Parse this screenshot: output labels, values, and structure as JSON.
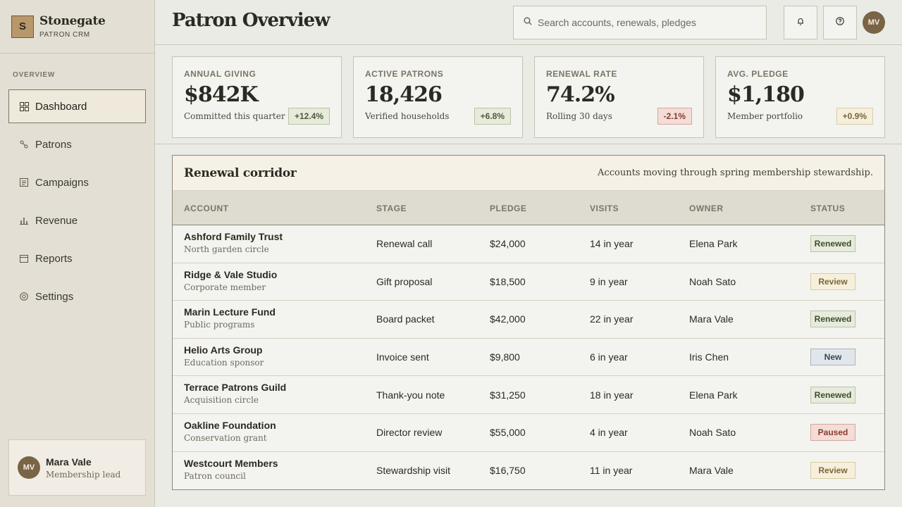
{
  "brand": {
    "initial": "S",
    "name": "Stonegate",
    "subtitle": "PATRON CRM"
  },
  "sidebar": {
    "section_label": "OVERVIEW",
    "items": [
      {
        "label": "Dashboard",
        "icon": "grid-icon",
        "active": true
      },
      {
        "label": "Patrons",
        "icon": "link-icon",
        "active": false
      },
      {
        "label": "Campaigns",
        "icon": "list-icon",
        "active": false
      },
      {
        "label": "Revenue",
        "icon": "bar-chart-icon",
        "active": false
      },
      {
        "label": "Reports",
        "icon": "card-icon",
        "active": false
      },
      {
        "label": "Settings",
        "icon": "target-icon",
        "active": false
      }
    ]
  },
  "user": {
    "initials": "MV",
    "name": "Mara Vale",
    "role": "Membership lead"
  },
  "header": {
    "title": "Patron Overview",
    "search_placeholder": "Search accounts, renewals, pledges",
    "notifications_icon": "bell-icon",
    "help_icon": "help-icon",
    "avatar_initials": "MV"
  },
  "kpis": [
    {
      "label": "ANNUAL GIVING",
      "value": "$842K",
      "sub": "Committed this quarter",
      "delta": "+12.4%",
      "tone": "up"
    },
    {
      "label": "ACTIVE PATRONS",
      "value": "18,426",
      "sub": "Verified households",
      "delta": "+6.8%",
      "tone": "up"
    },
    {
      "label": "RENEWAL RATE",
      "value": "74.2%",
      "sub": "Rolling 30 days",
      "delta": "-2.1%",
      "tone": "down"
    },
    {
      "label": "AVG. PLEDGE",
      "value": "$1,180",
      "sub": "Member portfolio",
      "delta": "+0.9%",
      "tone": "neutral"
    }
  ],
  "table": {
    "title": "Renewal corridor",
    "subtitle": "Accounts moving through spring membership stewardship.",
    "columns": [
      "ACCOUNT",
      "STAGE",
      "PLEDGE",
      "VISITS",
      "OWNER",
      "STATUS"
    ],
    "rows": [
      {
        "account": "Ashford Family Trust",
        "segment": "North garden circle",
        "stage": "Renewal call",
        "pledge": "$24,000",
        "visits": "14 in year",
        "owner": "Elena Park",
        "status": "Renewed",
        "tone": "renewed"
      },
      {
        "account": "Ridge & Vale Studio",
        "segment": "Corporate member",
        "stage": "Gift proposal",
        "pledge": "$18,500",
        "visits": "9 in year",
        "owner": "Noah Sato",
        "status": "Review",
        "tone": "review"
      },
      {
        "account": "Marin Lecture Fund",
        "segment": "Public programs",
        "stage": "Board packet",
        "pledge": "$42,000",
        "visits": "22 in year",
        "owner": "Mara Vale",
        "status": "Renewed",
        "tone": "renewed"
      },
      {
        "account": "Helio Arts Group",
        "segment": "Education sponsor",
        "stage": "Invoice sent",
        "pledge": "$9,800",
        "visits": "6 in year",
        "owner": "Iris Chen",
        "status": "New",
        "tone": "new"
      },
      {
        "account": "Terrace Patrons Guild",
        "segment": "Acquisition circle",
        "stage": "Thank-you note",
        "pledge": "$31,250",
        "visits": "18 in year",
        "owner": "Elena Park",
        "status": "Renewed",
        "tone": "renewed"
      },
      {
        "account": "Oakline Foundation",
        "segment": "Conservation grant",
        "stage": "Director review",
        "pledge": "$55,000",
        "visits": "4 in year",
        "owner": "Noah Sato",
        "status": "Paused",
        "tone": "paused"
      },
      {
        "account": "Westcourt Members",
        "segment": "Patron council",
        "stage": "Stewardship visit",
        "pledge": "$16,750",
        "visits": "11 in year",
        "owner": "Mara Vale",
        "status": "Review",
        "tone": "review"
      }
    ]
  }
}
